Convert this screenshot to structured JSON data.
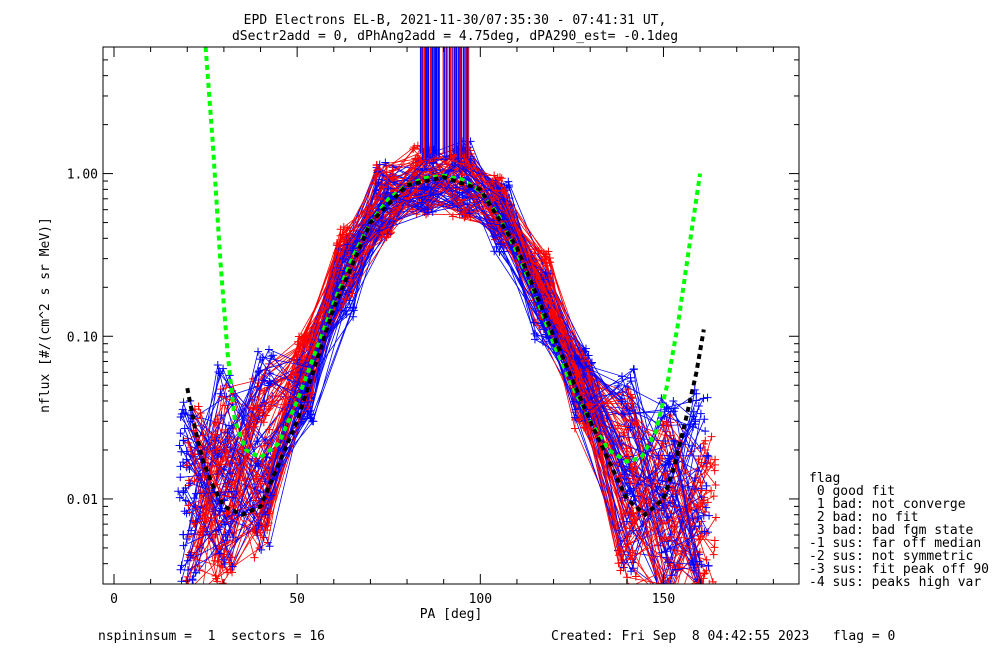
{
  "chart_data": {
    "type": "line",
    "title": "EPD Electrons EL-B, 2021-11-30/07:35:30 - 07:41:31 UT,",
    "subtitle": "dSectr2add = 0, dPhAng2add = 4.75deg, dPA290_est=  -0.1deg",
    "xlabel": "PA [deg]",
    "ylabel": "nflux [#/(cm^2 s sr MeV)]",
    "xlim": [
      -3,
      187
    ],
    "ylim": [
      0.003,
      6.0
    ],
    "yscale": "log",
    "x_ticks": [
      0,
      50,
      100,
      150
    ],
    "x_tick_labels": [
      "0",
      "50",
      "100",
      "150"
    ],
    "y_ticks": [
      0.01,
      0.1,
      1.0
    ],
    "y_tick_labels": [
      "0.01",
      "0.10",
      "1.00"
    ],
    "colors": {
      "red": "#ff0000",
      "blue": "#0000ff",
      "green": "#00ff00",
      "black": "#000000"
    },
    "series": [
      {
        "color": "red",
        "kind": "pitch-angle-distribution",
        "x": [
          22,
          30,
          40,
          52,
          63,
          74,
          84,
          95,
          105,
          117,
          128,
          140,
          152,
          162
        ],
        "y": [
          0.009,
          0.012,
          0.018,
          0.06,
          0.28,
          0.68,
          0.92,
          0.9,
          0.6,
          0.2,
          0.045,
          0.012,
          0.008,
          0.006
        ]
      },
      {
        "color": "blue",
        "kind": "pitch-angle-distribution",
        "x": [
          20,
          30,
          41,
          52,
          63,
          74,
          85,
          95,
          106,
          117,
          128,
          140,
          151,
          160
        ],
        "y": [
          0.012,
          0.016,
          0.02,
          0.05,
          0.22,
          0.7,
          0.92,
          0.95,
          0.55,
          0.15,
          0.05,
          0.015,
          0.01,
          0.012
        ]
      },
      {
        "color": "green",
        "kind": "fit",
        "x": [
          25,
          27,
          29,
          31,
          33,
          36,
          40,
          45,
          50,
          55,
          60,
          65,
          70,
          75,
          80,
          85,
          90,
          95,
          100,
          105,
          110,
          115,
          120,
          125,
          130,
          135,
          140,
          144,
          148,
          151,
          154,
          157,
          160
        ],
        "y": [
          6.0,
          1.5,
          0.3,
          0.08,
          0.03,
          0.02,
          0.018,
          0.022,
          0.04,
          0.08,
          0.16,
          0.3,
          0.5,
          0.7,
          0.85,
          0.94,
          0.97,
          0.92,
          0.78,
          0.55,
          0.33,
          0.18,
          0.09,
          0.05,
          0.03,
          0.02,
          0.017,
          0.018,
          0.026,
          0.05,
          0.12,
          0.35,
          1.0
        ]
      },
      {
        "color": "black",
        "kind": "fit",
        "x": [
          20,
          22,
          24,
          27,
          30,
          35,
          40,
          50,
          60,
          70,
          80,
          90,
          100,
          110,
          120,
          130,
          140,
          145,
          150,
          153,
          156,
          159,
          161
        ],
        "y": [
          0.048,
          0.028,
          0.018,
          0.012,
          0.009,
          0.008,
          0.009,
          0.03,
          0.15,
          0.5,
          0.85,
          0.95,
          0.8,
          0.35,
          0.1,
          0.03,
          0.01,
          0.008,
          0.01,
          0.016,
          0.03,
          0.06,
          0.11
        ]
      }
    ],
    "legend": {
      "position": "right",
      "title": "flag",
      "items": [
        " 0 good fit",
        " 1 bad: not converge",
        " 2 bad: no fit",
        " 3 bad: bad fgm state",
        "-1 sus: far off median",
        "-2 sus: not symmetric",
        "-3 sus: fit peak off 90",
        "-4 sus: peaks high var"
      ]
    }
  },
  "footer": {
    "left": "nspininsum =  1  sectors = 16",
    "right": "Created: Fri Sep  8 04:42:55 2023   flag = 0"
  }
}
